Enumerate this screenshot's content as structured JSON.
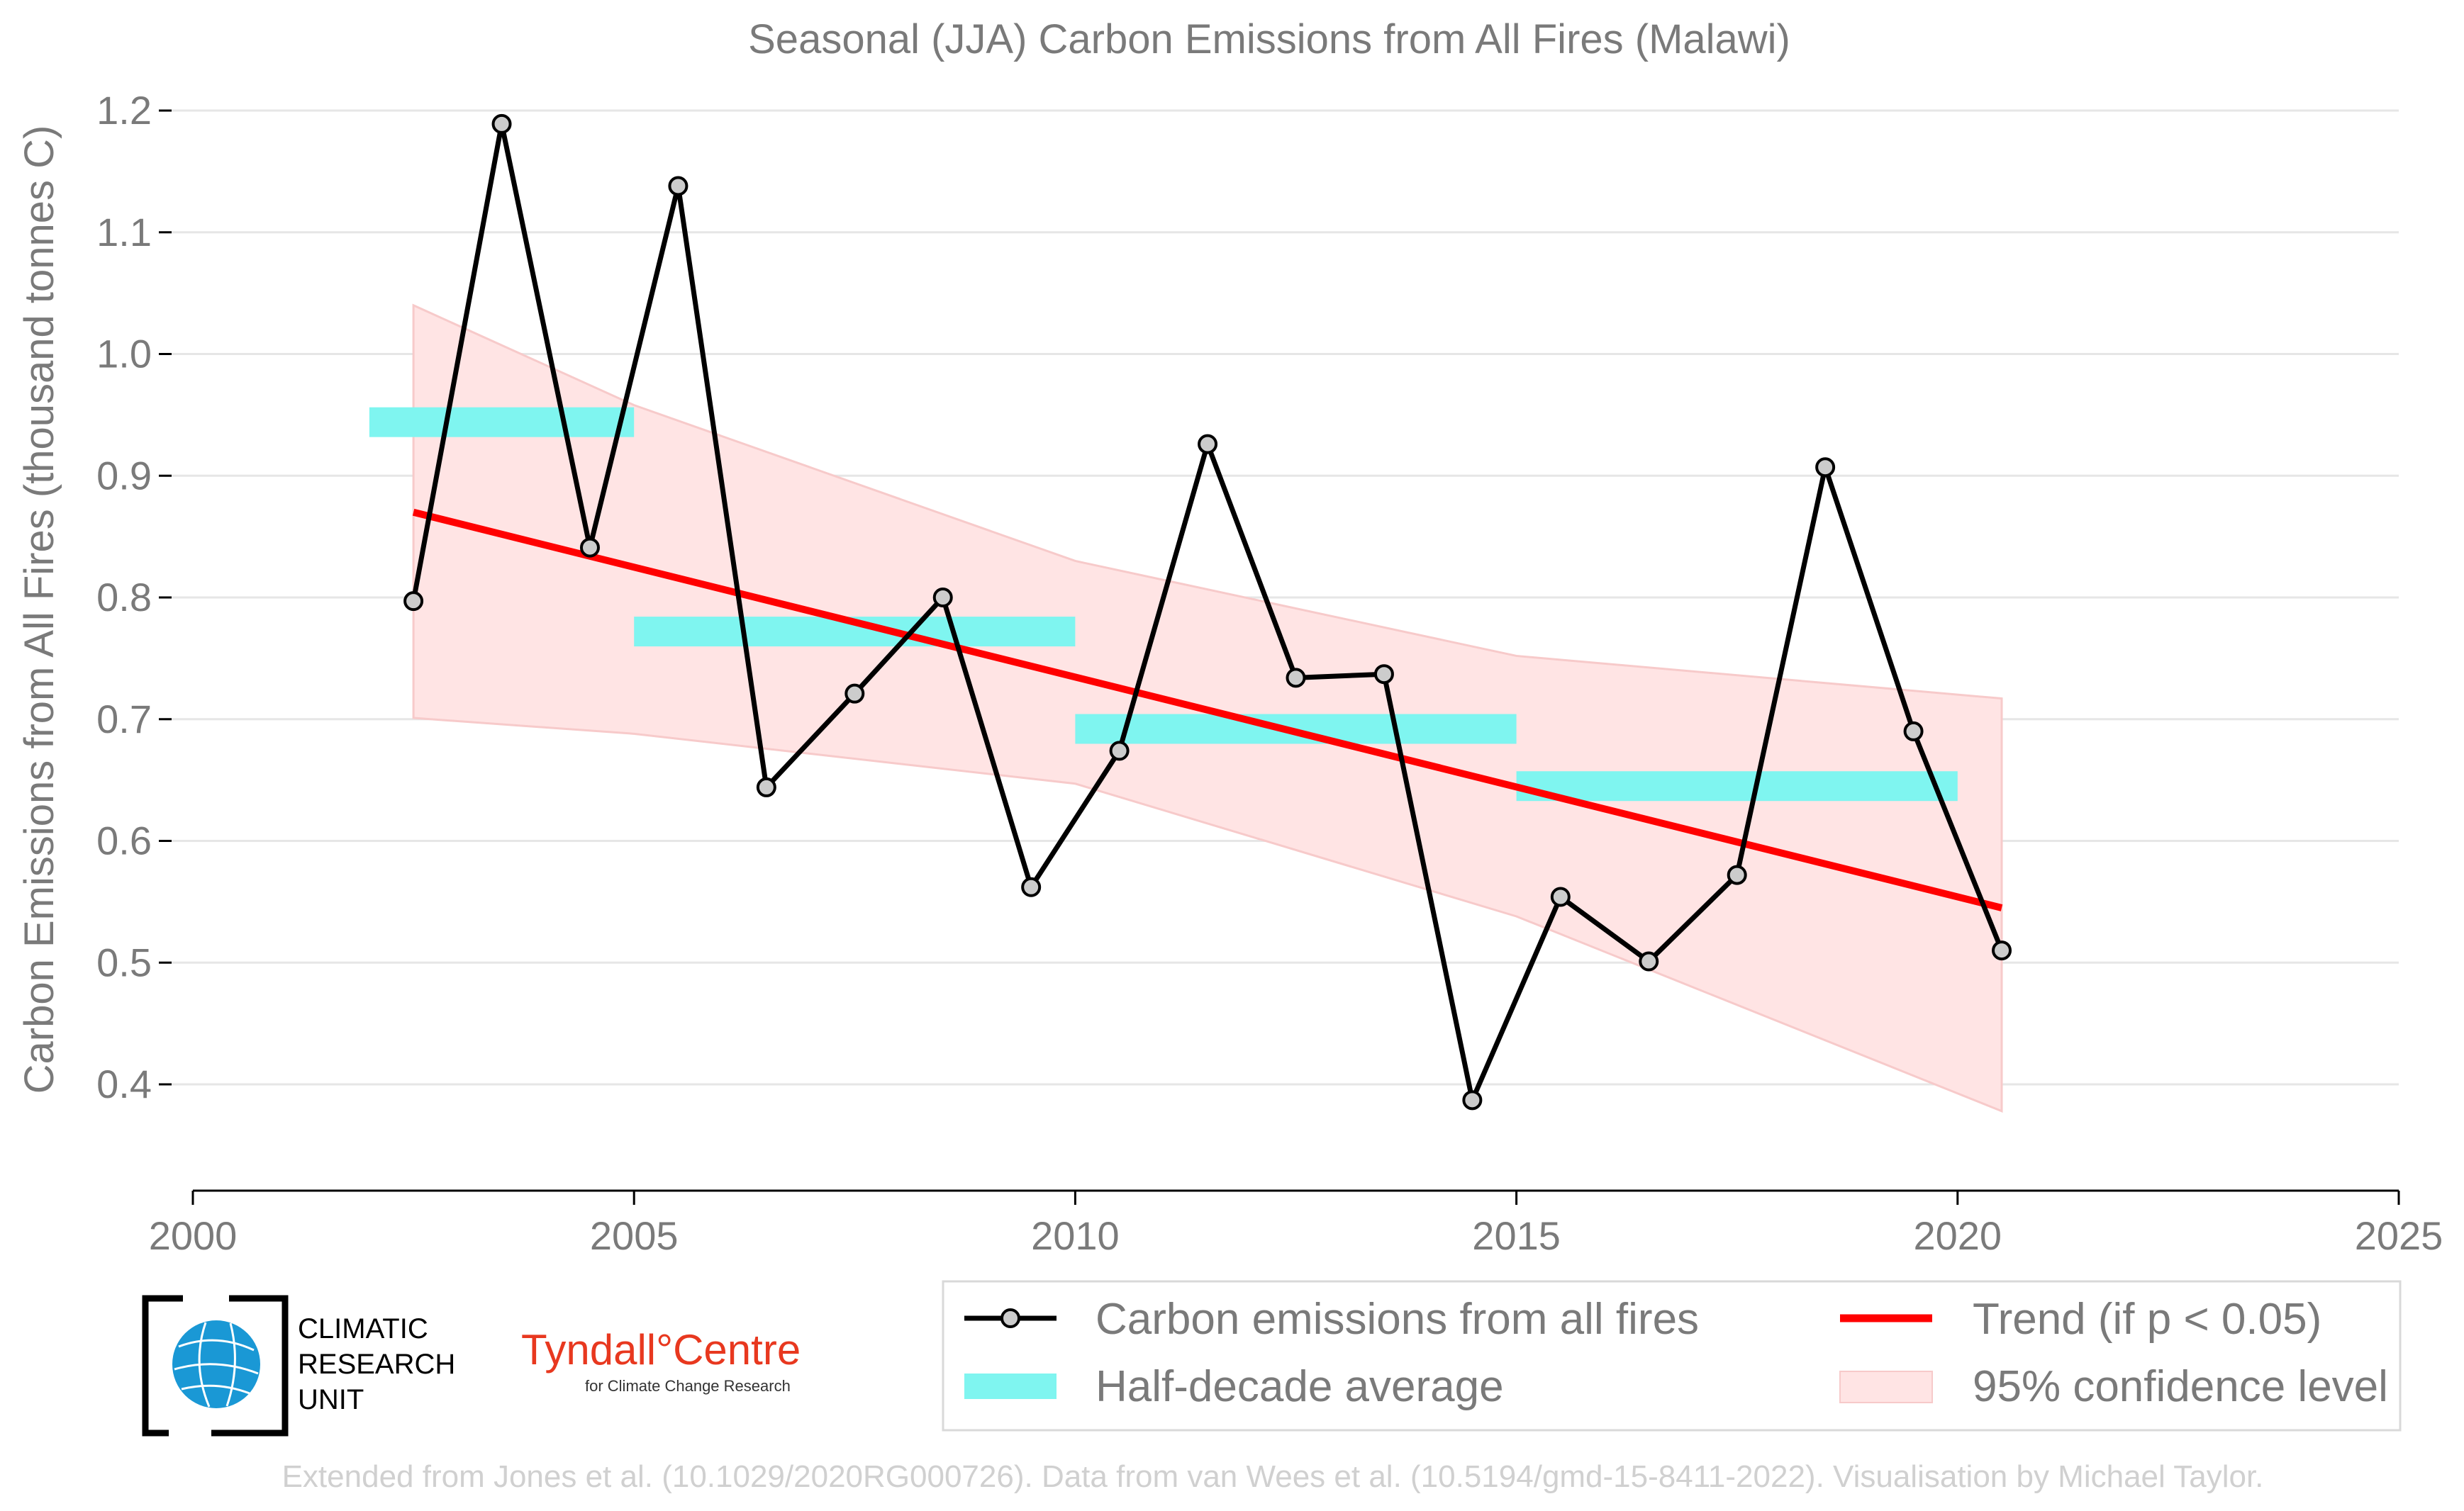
{
  "chart_data": {
    "type": "line",
    "title": "Seasonal (JJA) Carbon Emissions from All Fires (Malawi)",
    "ylabel": "Carbon Emissions from All Fires (thousand tonnes C)",
    "xlabel": "",
    "xlim": [
      2000,
      2025
    ],
    "ylim": [
      0.32,
      1.23
    ],
    "xticks": [
      2000,
      2005,
      2010,
      2015,
      2020,
      2025
    ],
    "yticks": [
      0.4,
      0.5,
      0.6,
      0.7,
      0.8,
      0.9,
      1.0,
      1.1,
      1.2
    ],
    "ytick_labels": [
      "0.4",
      "0.5",
      "0.6",
      "0.7",
      "0.8",
      "0.9",
      "1.0",
      "1.1",
      "1.2"
    ],
    "grid": "horizontal",
    "legend_position": "bottom",
    "series": [
      {
        "name": "Carbon emissions from all fires",
        "color": "#000000",
        "x": [
          2002.5,
          2003.5,
          2004.5,
          2005.5,
          2006.5,
          2007.5,
          2008.5,
          2009.5,
          2010.5,
          2011.5,
          2012.5,
          2013.5,
          2014.5,
          2015.5,
          2016.5,
          2017.5,
          2018.5,
          2019.5,
          2020.5
        ],
        "values": [
          0.797,
          1.189,
          0.841,
          1.138,
          0.644,
          0.721,
          0.8,
          0.562,
          0.674,
          0.926,
          0.734,
          0.737,
          0.387,
          0.554,
          0.501,
          0.572,
          0.907,
          0.69,
          0.51
        ]
      }
    ],
    "half_decade_average": {
      "name": "Half-decade average",
      "color": "#7ff5f0",
      "segments": [
        {
          "x0": 2002,
          "x1": 2005,
          "value": 0.944
        },
        {
          "x0": 2005,
          "x1": 2010,
          "value": 0.772
        },
        {
          "x0": 2010,
          "x1": 2015,
          "value": 0.692
        },
        {
          "x0": 2015,
          "x1": 2020,
          "value": 0.645
        }
      ]
    },
    "trend": {
      "name": "Trend (if p < 0.05)",
      "color": "#ff0000",
      "x": [
        2002.5,
        2020.5
      ],
      "values": [
        0.87,
        0.545
      ]
    },
    "confidence": {
      "name": "95% confidence level",
      "color": "#ffe4e4",
      "x": [
        2002.5,
        2005,
        2010,
        2015,
        2020.5
      ],
      "upper": [
        1.04,
        0.958,
        0.83,
        0.752,
        0.717
      ],
      "lower": [
        0.701,
        0.688,
        0.647,
        0.538,
        0.378
      ]
    }
  },
  "legend": {
    "series_label": "Carbon emissions from all fires",
    "average_label": "Half-decade average",
    "trend_label": "Trend (if p < 0.05)",
    "confidence_label": "95% confidence level"
  },
  "logos": {
    "cru_line1": "CLIMATIC",
    "cru_line2": "RESEARCH",
    "cru_line3": "UNIT",
    "tyndall_name": "Tyndall°Centre",
    "tyndall_sub": "for Climate Change Research"
  },
  "credit": "Extended from Jones et al. (10.1029/2020RG000726). Data from van Wees et al. (10.5194/gmd-15-8411-2022). Visualisation by Michael Taylor."
}
